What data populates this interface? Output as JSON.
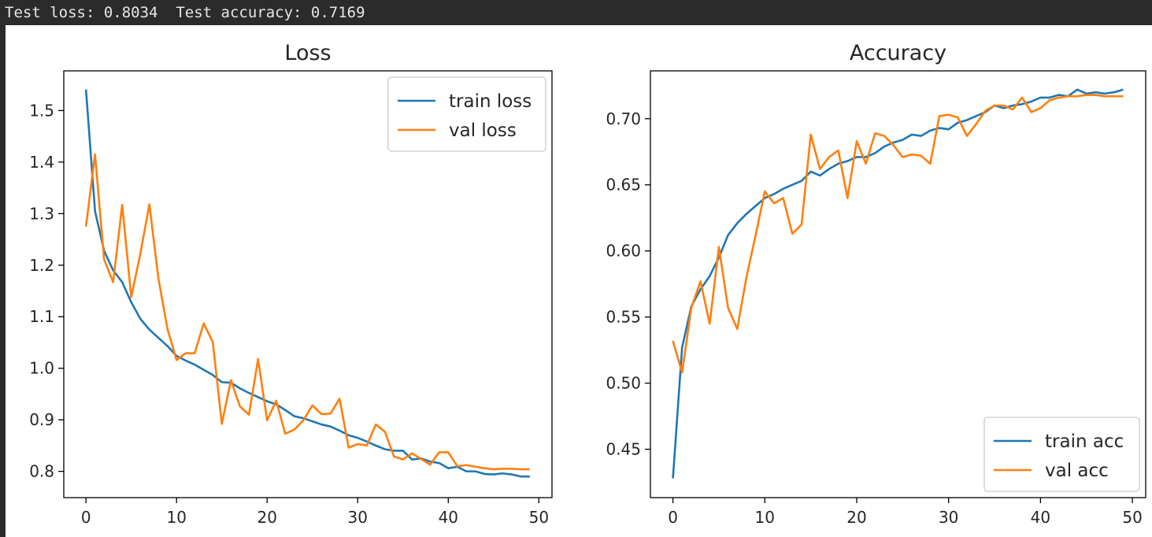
{
  "console": {
    "output": "Test loss: 0.8034  Test accuracy: 0.7169"
  },
  "chart_data": [
    {
      "type": "line",
      "title": "Loss",
      "xlabel": "",
      "ylabel": "",
      "xlim": [
        -2.45,
        51.45
      ],
      "ylim": [
        0.749,
        1.577
      ],
      "xticks": [
        0,
        10,
        20,
        30,
        40,
        50
      ],
      "yticks": [
        0.8,
        0.9,
        1.0,
        1.1,
        1.2,
        1.3,
        1.4,
        1.5
      ],
      "ytick_labels": [
        "0.8",
        "0.9",
        "1.0",
        "1.1",
        "1.2",
        "1.3",
        "1.4",
        "1.5"
      ],
      "legend_position": "upper-right",
      "grid": false,
      "series": [
        {
          "name": "train loss",
          "color": "#1f77b4",
          "x": [
            0,
            1,
            2,
            3,
            4,
            5,
            6,
            7,
            8,
            9,
            10,
            11,
            12,
            13,
            14,
            15,
            16,
            17,
            18,
            19,
            20,
            21,
            22,
            23,
            24,
            25,
            26,
            27,
            28,
            29,
            30,
            31,
            32,
            33,
            34,
            35,
            36,
            37,
            38,
            39,
            40,
            41,
            42,
            43,
            44,
            45,
            46,
            47,
            48,
            49
          ],
          "y": [
            1.541,
            1.305,
            1.228,
            1.19,
            1.167,
            1.128,
            1.096,
            1.075,
            1.059,
            1.043,
            1.024,
            1.015,
            1.007,
            0.997,
            0.987,
            0.973,
            0.972,
            0.961,
            0.952,
            0.944,
            0.936,
            0.93,
            0.919,
            0.907,
            0.903,
            0.897,
            0.891,
            0.887,
            0.879,
            0.87,
            0.865,
            0.858,
            0.85,
            0.843,
            0.84,
            0.84,
            0.823,
            0.825,
            0.819,
            0.816,
            0.806,
            0.809,
            0.8,
            0.8,
            0.795,
            0.794,
            0.796,
            0.794,
            0.79,
            0.79
          ]
        },
        {
          "name": "val loss",
          "color": "#ff7f0e",
          "x": [
            0,
            1,
            2,
            3,
            4,
            5,
            6,
            7,
            8,
            9,
            10,
            11,
            12,
            13,
            14,
            15,
            16,
            17,
            18,
            19,
            20,
            21,
            22,
            23,
            24,
            25,
            26,
            27,
            28,
            29,
            30,
            31,
            32,
            33,
            34,
            35,
            36,
            37,
            38,
            39,
            40,
            41,
            42,
            43,
            44,
            45,
            46,
            47,
            48,
            49
          ],
          "y": [
            1.275,
            1.415,
            1.211,
            1.167,
            1.317,
            1.138,
            1.222,
            1.318,
            1.174,
            1.076,
            1.016,
            1.029,
            1.029,
            1.087,
            1.051,
            0.892,
            0.977,
            0.926,
            0.91,
            1.018,
            0.899,
            0.937,
            0.873,
            0.881,
            0.899,
            0.928,
            0.911,
            0.912,
            0.941,
            0.846,
            0.853,
            0.85,
            0.891,
            0.877,
            0.829,
            0.823,
            0.835,
            0.824,
            0.813,
            0.837,
            0.837,
            0.81,
            0.812,
            0.809,
            0.806,
            0.804,
            0.805,
            0.805,
            0.804,
            0.804
          ]
        }
      ]
    },
    {
      "type": "line",
      "title": "Accuracy",
      "xlabel": "",
      "ylabel": "",
      "xlim": [
        -2.45,
        51.45
      ],
      "ylim": [
        0.4134,
        0.7362
      ],
      "xticks": [
        0,
        10,
        20,
        30,
        40,
        50
      ],
      "yticks": [
        0.45,
        0.5,
        0.55,
        0.6,
        0.65,
        0.7
      ],
      "ytick_labels": [
        "0.45",
        "0.50",
        "0.55",
        "0.60",
        "0.65",
        "0.70"
      ],
      "legend_position": "lower-right",
      "grid": false,
      "series": [
        {
          "name": "train acc",
          "color": "#1f77b4",
          "x": [
            0,
            1,
            2,
            3,
            4,
            5,
            6,
            7,
            8,
            9,
            10,
            11,
            12,
            13,
            14,
            15,
            16,
            17,
            18,
            19,
            20,
            21,
            22,
            23,
            24,
            25,
            26,
            27,
            28,
            29,
            30,
            31,
            32,
            33,
            34,
            35,
            36,
            37,
            38,
            39,
            40,
            41,
            42,
            43,
            44,
            45,
            46,
            47,
            48,
            49
          ],
          "y": [
            0.428,
            0.527,
            0.558,
            0.571,
            0.581,
            0.595,
            0.612,
            0.621,
            0.628,
            0.634,
            0.64,
            0.643,
            0.647,
            0.65,
            0.653,
            0.66,
            0.657,
            0.662,
            0.666,
            0.668,
            0.671,
            0.671,
            0.674,
            0.679,
            0.682,
            0.684,
            0.688,
            0.687,
            0.691,
            0.693,
            0.692,
            0.697,
            0.699,
            0.702,
            0.705,
            0.71,
            0.708,
            0.71,
            0.711,
            0.713,
            0.716,
            0.716,
            0.718,
            0.717,
            0.722,
            0.719,
            0.72,
            0.719,
            0.72,
            0.722
          ]
        },
        {
          "name": "val acc",
          "color": "#ff7f0e",
          "x": [
            0,
            1,
            2,
            3,
            4,
            5,
            6,
            7,
            8,
            9,
            10,
            11,
            12,
            13,
            14,
            15,
            16,
            17,
            18,
            19,
            20,
            21,
            22,
            23,
            24,
            25,
            26,
            27,
            28,
            29,
            30,
            31,
            32,
            33,
            34,
            35,
            36,
            37,
            38,
            39,
            40,
            41,
            42,
            43,
            44,
            45,
            46,
            47,
            48,
            49
          ],
          "y": [
            0.532,
            0.508,
            0.557,
            0.577,
            0.545,
            0.603,
            0.557,
            0.541,
            0.58,
            0.612,
            0.645,
            0.636,
            0.64,
            0.613,
            0.62,
            0.688,
            0.662,
            0.671,
            0.676,
            0.64,
            0.683,
            0.666,
            0.689,
            0.687,
            0.68,
            0.671,
            0.673,
            0.672,
            0.666,
            0.702,
            0.703,
            0.701,
            0.687,
            0.696,
            0.706,
            0.71,
            0.71,
            0.707,
            0.716,
            0.705,
            0.708,
            0.714,
            0.716,
            0.717,
            0.717,
            0.718,
            0.718,
            0.717,
            0.717,
            0.717
          ]
        }
      ]
    }
  ]
}
